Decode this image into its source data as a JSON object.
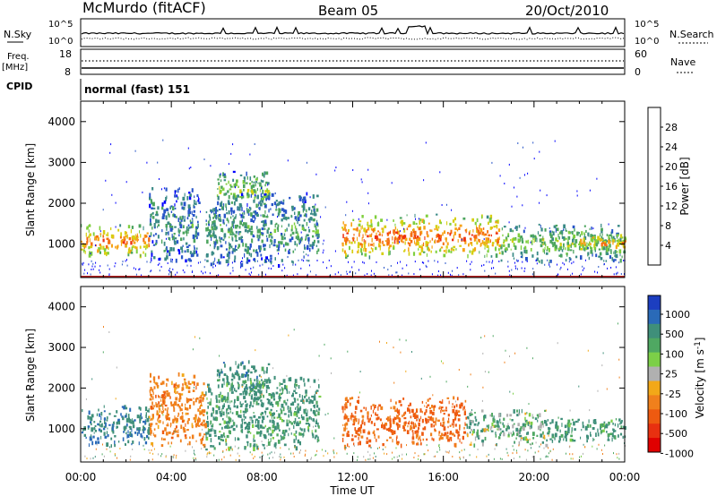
{
  "header": {
    "station": "McMurdo (fitACF)",
    "beam": "Beam 05",
    "date": "20/Oct/2010"
  },
  "noise_panel": {
    "left_label": "N.Sky",
    "right_label": "N.Search",
    "left_ticks": [
      "10^5",
      "10^0"
    ],
    "right_ticks": [
      "10^5",
      "10^0"
    ]
  },
  "freq_panel": {
    "left_label_line1": "Freq.",
    "left_label_line2": "[MHz]",
    "left_ticks": [
      "18",
      "8"
    ],
    "right_label": "Nave",
    "right_ticks": [
      "60",
      "0"
    ]
  },
  "cpid_panel": {
    "label": "CPID",
    "value": "normal (fast) 151"
  },
  "chart_data": [
    {
      "type": "heatmap",
      "parameter": "Power",
      "ylabel": "Slant Range [km]",
      "ylim": [
        180,
        4500
      ],
      "yticks": [
        1000,
        2000,
        3000,
        4000
      ],
      "xlim": [
        0,
        24
      ],
      "colorbar": {
        "label": "Power [dB]",
        "range": [
          0,
          32
        ],
        "ticks": [
          "4",
          "8",
          "12",
          "16",
          "20",
          "24",
          "28"
        ],
        "colors": [
          "#0000ff",
          "#2855c8",
          "#3a8a86",
          "#4ca55e",
          "#7fcf3d",
          "#d6cf12",
          "#f7a215",
          "#f56e10",
          "#ee3010",
          "#e80000"
        ]
      },
      "echo_regions": [
        {
          "t0": 0.0,
          "t1": 3.0,
          "r0": 700,
          "r1": 1500,
          "level": 0.65
        },
        {
          "t0": 3.0,
          "t1": 5.2,
          "r0": 600,
          "r1": 2400,
          "level": 0.25
        },
        {
          "t0": 6.0,
          "t1": 8.3,
          "r0": 1900,
          "r1": 2800,
          "level": 0.4
        },
        {
          "t0": 5.5,
          "t1": 10.5,
          "r0": 500,
          "r1": 2300,
          "level": 0.28
        },
        {
          "t0": 11.5,
          "t1": 18.5,
          "r0": 700,
          "r1": 1750,
          "level": 0.68
        },
        {
          "t0": 18.5,
          "t1": 24.0,
          "r0": 600,
          "r1": 1500,
          "level": 0.38
        },
        {
          "t0": 22.0,
          "t1": 24.0,
          "r0": 800,
          "r1": 1300,
          "level": 0.6
        }
      ]
    },
    {
      "type": "heatmap",
      "parameter": "Velocity",
      "ylabel": "Slant Range [km]",
      "ylim": [
        180,
        4500
      ],
      "yticks": [
        1000,
        2000,
        3000,
        4000
      ],
      "xlim": [
        0,
        24
      ],
      "xticks": [
        "00:00",
        "04:00",
        "08:00",
        "12:00",
        "16:00",
        "20:00",
        "00:00"
      ],
      "xlabel": "Time UT",
      "colorbar": {
        "label": "Velocity [m s^-1]",
        "ticks": [
          "1000",
          "500",
          "100",
          "25",
          "-25",
          "-100",
          "-500",
          "-1000"
        ],
        "colors": [
          "#1c3ec0",
          "#2a6ab8",
          "#3f8f7a",
          "#4fa862",
          "#7ccf48",
          "#b0b0b0",
          "#f2a818",
          "#f0801c",
          "#ee5a10",
          "#e83010",
          "#e00000"
        ]
      },
      "echo_regions": [
        {
          "t0": 0.0,
          "t1": 3.0,
          "r0": 600,
          "r1": 1600,
          "velocity": 300
        },
        {
          "t0": 3.0,
          "t1": 5.5,
          "r0": 600,
          "r1": 2400,
          "velocity": -150
        },
        {
          "t0": 6.0,
          "t1": 8.3,
          "r0": 1900,
          "r1": 2700,
          "velocity": 200
        },
        {
          "t0": 5.5,
          "t1": 10.5,
          "r0": 500,
          "r1": 2300,
          "velocity": 150
        },
        {
          "t0": 11.5,
          "t1": 17.0,
          "r0": 600,
          "r1": 1800,
          "velocity": -300
        },
        {
          "t0": 17.0,
          "t1": 20.5,
          "r0": 600,
          "r1": 1500,
          "velocity": 80
        },
        {
          "t0": 20.5,
          "t1": 24.0,
          "r0": 700,
          "r1": 1300,
          "velocity": 150
        }
      ]
    }
  ]
}
